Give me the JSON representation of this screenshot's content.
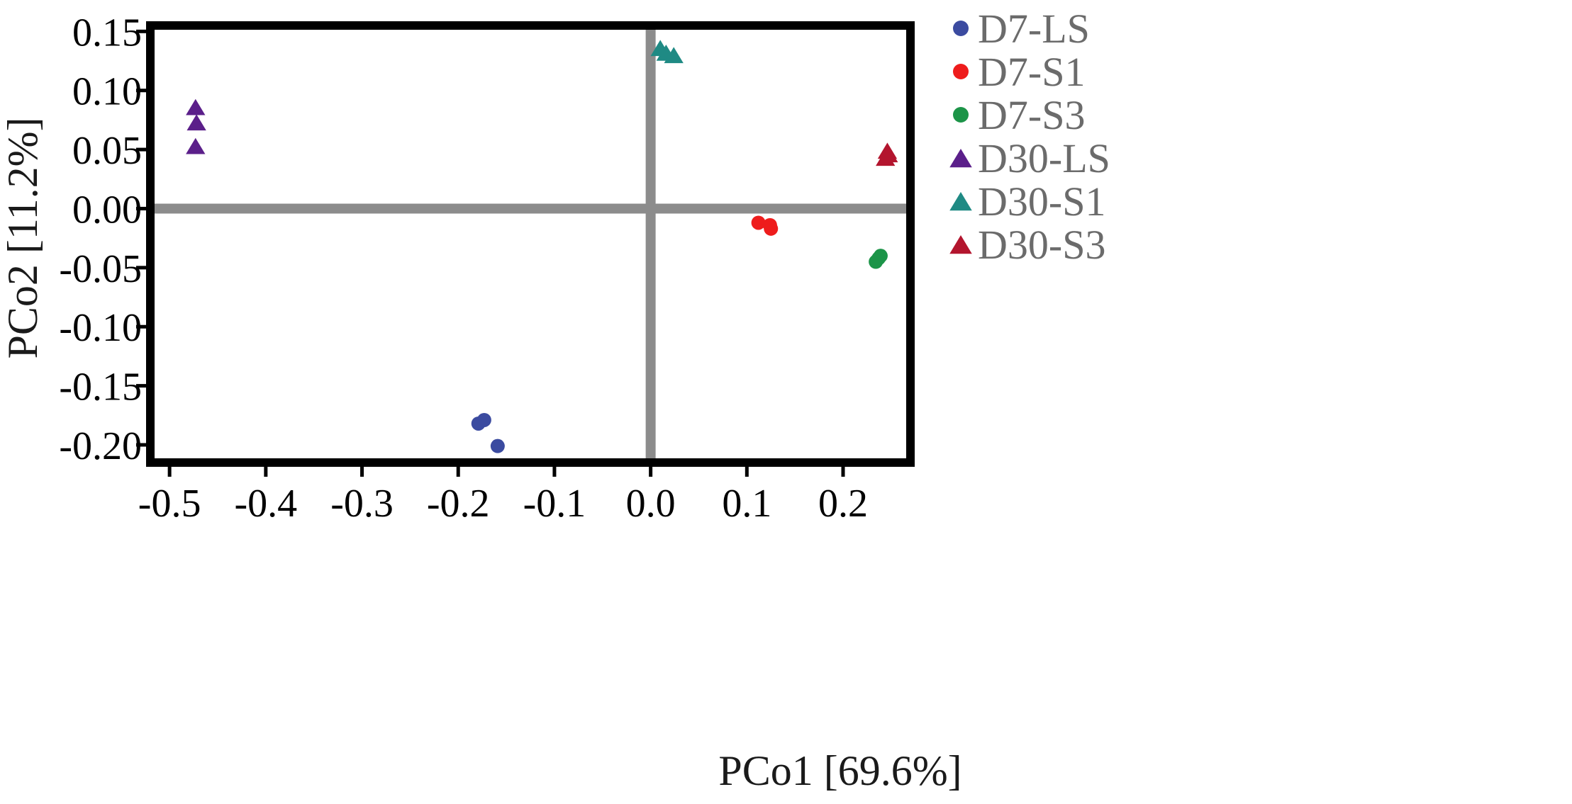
{
  "chart_data": {
    "type": "scatter",
    "xlabel": "PCo1 [69.6%]",
    "ylabel": "PCo2 [11.2%]",
    "xlim": [
      -0.52,
      0.27
    ],
    "ylim": [
      -0.215,
      0.155
    ],
    "xticks": [
      -0.5,
      -0.4,
      -0.3,
      -0.2,
      -0.1,
      0.0,
      0.1,
      0.2
    ],
    "xtick_labels": [
      "-0.5",
      "-0.4",
      "-0.3",
      "-0.2",
      "-0.1",
      "0.0",
      "0.1",
      "0.2"
    ],
    "yticks": [
      0.15,
      0.1,
      0.05,
      0.0,
      -0.05,
      -0.1,
      -0.15,
      -0.2
    ],
    "ytick_labels": [
      "0.15",
      "0.10",
      "0.05",
      "0.00",
      "-0.05",
      "-0.10",
      "-0.15",
      "-0.20"
    ],
    "reference_lines": {
      "x": 0.0,
      "y": 0.0
    },
    "grid": false,
    "legend_position": "right",
    "series": [
      {
        "name": "D7-LS",
        "marker": "circle",
        "color": "#3b4ba0",
        "points": [
          [
            -0.179,
            -0.182
          ],
          [
            -0.173,
            -0.179
          ],
          [
            -0.159,
            -0.201
          ]
        ]
      },
      {
        "name": "D7-S1",
        "marker": "circle",
        "color": "#ee1c1c",
        "points": [
          [
            0.112,
            -0.012
          ],
          [
            0.124,
            -0.014
          ],
          [
            0.125,
            -0.017
          ]
        ]
      },
      {
        "name": "D7-S3",
        "marker": "circle",
        "color": "#1c9448",
        "points": [
          [
            0.234,
            -0.045
          ],
          [
            0.239,
            -0.04
          ],
          [
            0.237,
            -0.042
          ]
        ]
      },
      {
        "name": "D30-LS",
        "marker": "triangle",
        "color": "#5b1f8a",
        "points": [
          [
            -0.473,
            0.085
          ],
          [
            -0.472,
            0.072
          ],
          [
            -0.473,
            0.052
          ]
        ]
      },
      {
        "name": "D30-S1",
        "marker": "triangle",
        "color": "#1f8a84",
        "points": [
          [
            0.01,
            0.135
          ],
          [
            0.016,
            0.131
          ],
          [
            0.024,
            0.129
          ]
        ]
      },
      {
        "name": "D30-S3",
        "marker": "triangle",
        "color": "#b3152e",
        "points": [
          [
            0.246,
            0.048
          ],
          [
            0.244,
            0.042
          ],
          [
            0.247,
            0.045
          ]
        ]
      }
    ]
  }
}
